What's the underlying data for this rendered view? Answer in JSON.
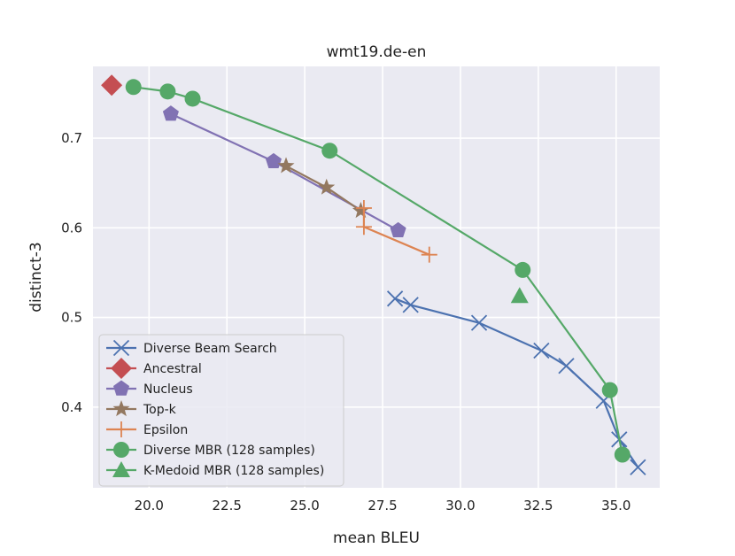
{
  "chart_data": {
    "type": "line",
    "title": "wmt19.de-en",
    "xlabel": "mean BLEU",
    "ylabel": "distinct-3",
    "xlim": [
      18.2,
      36.4
    ],
    "ylim": [
      0.31,
      0.78
    ],
    "xticks": [
      20.0,
      22.5,
      25.0,
      27.5,
      30.0,
      32.5,
      35.0
    ],
    "xtick_labels": [
      "20.0",
      "22.5",
      "25.0",
      "27.5",
      "30.0",
      "32.5",
      "35.0"
    ],
    "yticks": [
      0.4,
      0.5,
      0.6,
      0.7
    ],
    "ytick_labels": [
      "0.4",
      "0.5",
      "0.6",
      "0.7"
    ],
    "grid": true,
    "legend_position": "lower-left",
    "series": [
      {
        "name": "Diverse Beam Search",
        "color": "#4c72b0",
        "marker": "x",
        "x": [
          27.9,
          28.4,
          30.6,
          32.6,
          33.4,
          34.6,
          35.1,
          35.7
        ],
        "y": [
          0.521,
          0.514,
          0.494,
          0.463,
          0.446,
          0.407,
          0.364,
          0.333
        ]
      },
      {
        "name": "Ancestral",
        "color": "#c44e52",
        "marker": "diamond",
        "x": [
          18.8
        ],
        "y": [
          0.759
        ]
      },
      {
        "name": "Nucleus",
        "color": "#8172b3",
        "marker": "pentagon",
        "x": [
          20.7,
          24.0,
          28.0
        ],
        "y": [
          0.727,
          0.674,
          0.597
        ]
      },
      {
        "name": "Top-k",
        "color": "#937860",
        "marker": "star",
        "x": [
          24.4,
          25.7,
          26.8
        ],
        "y": [
          0.669,
          0.645,
          0.619
        ]
      },
      {
        "name": "Epsilon",
        "color": "#dd8452",
        "marker": "plus",
        "x": [
          26.9,
          26.9,
          29.0
        ],
        "y": [
          0.622,
          0.601,
          0.57
        ]
      },
      {
        "name": "Diverse MBR (128 samples)",
        "color": "#55a868",
        "marker": "circle",
        "x": [
          19.5,
          20.6,
          21.4,
          25.8,
          32.0,
          34.8,
          35.2
        ],
        "y": [
          0.757,
          0.752,
          0.744,
          0.686,
          0.553,
          0.419,
          0.347
        ]
      },
      {
        "name": "K-Medoid MBR (128 samples)",
        "color": "#55a868",
        "marker": "triangle",
        "x": [
          31.9
        ],
        "y": [
          0.524
        ]
      }
    ]
  }
}
